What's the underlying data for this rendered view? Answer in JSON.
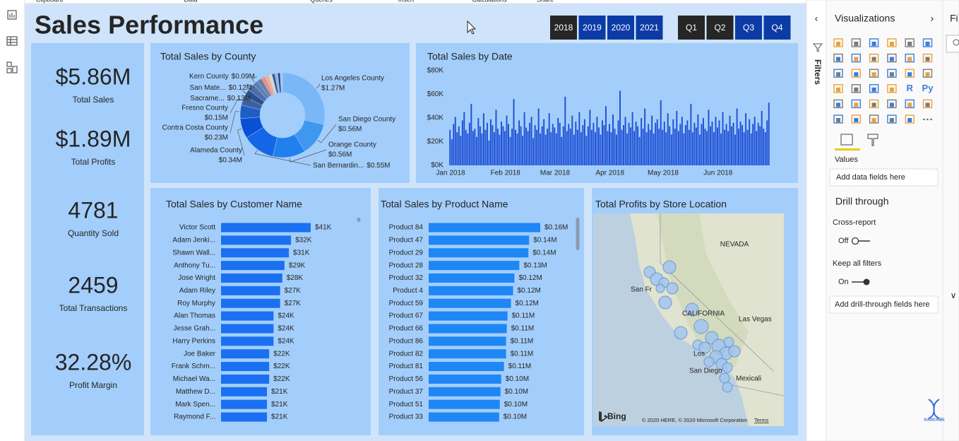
{
  "ribbon": [
    "Clipboard",
    "Data",
    "Queries",
    "Insert",
    "Calculations",
    "Share"
  ],
  "title": "Sales Performance",
  "year_slicer": [
    "2018",
    "2019",
    "2020",
    "2021"
  ],
  "quarter_slicer": [
    "Q1",
    "Q2",
    "Q3",
    "Q4"
  ],
  "kpis": [
    {
      "value": "$5.86M",
      "label": "Total Sales"
    },
    {
      "value": "$1.89M",
      "label": "Total Profits"
    },
    {
      "value": "4781",
      "label": "Quantity Sold"
    },
    {
      "value": "2459",
      "label": "Total Transactions"
    },
    {
      "value": "32.28%",
      "label": "Profit Margin"
    }
  ],
  "county_chart": {
    "type": "pie",
    "title": "Total Sales by County",
    "categories": [
      "Los Angeles County",
      "San Diego County",
      "Orange County",
      "San Bernardin...",
      "Alameda County",
      "Contra Costa County",
      "Fresno County",
      "Sacrame...",
      "San Mate...",
      "Kern County",
      null,
      null,
      null,
      null,
      null,
      null,
      null,
      null
    ],
    "values": [
      1.27,
      0.56,
      0.56,
      0.55,
      0.34,
      0.23,
      0.15,
      0.13,
      0.12,
      0.09,
      0.08,
      0.07,
      0.06,
      0.06,
      0.05,
      0.05,
      0.04,
      0.04
    ],
    "value_labels": [
      "$1.27M",
      "$0.56M",
      "$0.56M",
      "$0.55M",
      "$0.34M",
      "$0.23M",
      "$0.15M",
      "$0.13M",
      "$0.12M",
      "$0.09M",
      null,
      null,
      null,
      null,
      null,
      null,
      null,
      null
    ],
    "colors": [
      "#79b7f6",
      "#3f97f0",
      "#2280ee",
      "#1466e6",
      "#0a4fd4",
      "#1e5cc6",
      "#3f5f9c",
      "#2a4f8e",
      "#4d6ea8",
      "#5c7fb8",
      "#6b7fa3",
      "#f08e8e",
      "#f3b089",
      "#d9d9d9",
      "#3c5a8a",
      "#8fb6e8",
      "#2d3e6b",
      "#a4c8f0"
    ]
  },
  "date_chart": {
    "type": "bar",
    "title": "Total Sales by Date",
    "color": "#1c4ed4",
    "values": [
      30,
      22,
      35,
      41,
      28,
      33,
      25,
      38,
      45,
      30,
      27,
      36,
      52,
      29,
      31,
      24,
      40,
      33,
      27,
      44,
      30,
      36,
      21,
      39,
      34,
      28,
      47,
      31,
      26,
      37,
      33,
      29,
      42,
      35,
      24,
      31,
      56,
      30,
      27,
      38,
      33,
      25,
      45,
      32,
      29,
      36,
      41,
      23,
      34,
      30,
      48,
      27,
      33,
      39,
      26,
      31,
      44,
      28,
      35,
      32,
      27,
      40,
      36,
      24,
      33,
      58,
      29,
      35,
      31,
      42,
      26,
      37,
      30,
      45,
      28,
      34,
      39,
      25,
      33,
      47,
      30,
      36,
      28,
      41,
      32,
      26,
      38,
      34,
      50,
      29,
      35,
      28,
      43,
      31,
      26,
      38,
      63,
      30,
      34,
      41,
      27,
      36,
      32,
      45,
      29,
      37,
      33,
      24,
      40,
      31,
      48,
      28,
      35,
      30,
      42,
      27,
      36,
      39,
      31,
      55,
      30,
      37,
      28,
      44,
      33,
      26,
      39,
      31,
      46,
      29,
      35,
      41,
      27,
      34,
      38,
      30,
      52,
      28,
      36,
      32,
      43,
      26,
      35,
      40,
      31,
      29,
      47,
      33,
      37,
      28,
      41,
      32,
      38,
      27,
      45,
      30,
      35,
      29,
      42,
      33,
      36,
      26,
      48,
      31,
      37,
      34,
      28,
      44,
      30,
      39,
      27,
      35,
      41,
      29,
      36,
      33,
      46,
      31,
      28,
      38,
      53
    ],
    "xlim": [
      0,
      181
    ],
    "xticks": [
      {
        "value": 0,
        "label": "Jan 2018"
      },
      {
        "value": 31,
        "label": "Feb 2018"
      },
      {
        "value": 59,
        "label": "Mar 2018"
      },
      {
        "value": 90,
        "label": "Apr 2018"
      },
      {
        "value": 120,
        "label": "May 2018"
      },
      {
        "value": 151,
        "label": "Jun 2018"
      }
    ],
    "ylim": [
      0,
      80
    ],
    "yticks": [
      {
        "value": 0,
        "label": "$0K"
      },
      {
        "value": 20,
        "label": "$20K"
      },
      {
        "value": 40,
        "label": "$40K"
      },
      {
        "value": 60,
        "label": "$60K"
      },
      {
        "value": 80,
        "label": "$80K"
      }
    ]
  },
  "customer_chart": {
    "type": "bar",
    "orientation": "horizontal",
    "title": "Total Sales by Customer Name",
    "color": "#1a70f0",
    "categories": [
      "Victor Scott",
      "Adam Jenki...",
      "Shawn Wall...",
      "Anthony Tu...",
      "Jose Wright",
      "Adam Riley",
      "Roy Murphy",
      "Alan Thomas",
      "Jesse Grah...",
      "Harry Perkins",
      "Joe Baker",
      "Frank Schm...",
      "Michael Wa...",
      "Matthew D...",
      "Mark Spen...",
      "Raymond F..."
    ],
    "values": [
      41,
      32,
      31,
      29,
      28,
      27,
      27,
      24,
      24,
      24,
      22,
      22,
      22,
      21,
      21,
      21
    ],
    "value_labels": [
      "$41K",
      "$32K",
      "$31K",
      "$29K",
      "$28K",
      "$27K",
      "$27K",
      "$24K",
      "$24K",
      "$24K",
      "$22K",
      "$22K",
      "$22K",
      "$21K",
      "$21K",
      "$21K"
    ]
  },
  "product_chart": {
    "type": "bar",
    "orientation": "horizontal",
    "title": "Total Sales by Product Name",
    "color": "#1f86f5",
    "categories": [
      "Product 84",
      "Product 47",
      "Product 29",
      "Product 28",
      "Product 32",
      "Product 4",
      "Product 59",
      "Product 67",
      "Product 66",
      "Product 86",
      "Product 82",
      "Product 81",
      "Product 56",
      "Product 37",
      "Product 51",
      "Product 33"
    ],
    "values": [
      0.16,
      0.144,
      0.143,
      0.13,
      0.123,
      0.121,
      0.118,
      0.113,
      0.112,
      0.111,
      0.111,
      0.108,
      0.104,
      0.103,
      0.102,
      0.101
    ],
    "value_labels": [
      "$0.16M",
      "$0.14M",
      "$0.14M",
      "$0.13M",
      "$0.12M",
      "$0.12M",
      "$0.12M",
      "$0.11M",
      "$0.11M",
      "$0.11M",
      "$0.11M",
      "$0.11M",
      "$0.10M",
      "$0.10M",
      "$0.10M",
      "$0.10M"
    ]
  },
  "map": {
    "title": "Total Profits by Store Location",
    "labels": [
      "NEVADA",
      "San Fr",
      "CALIFORNIA",
      "Las Vegas",
      "Los",
      "San Diego",
      "Mexicali"
    ],
    "logo": "Bing",
    "attribution": "© 2020 HERE, © 2020 Microsoft Corporation",
    "terms": "Terms"
  },
  "filters_pane": {
    "title": "Filters"
  },
  "visualizations_pane": {
    "title": "Visualizations",
    "icon_labels": [
      "R",
      "Py"
    ],
    "values_label": "Values",
    "values_placeholder": "Add data fields here",
    "drill_through": "Drill through",
    "cross_report": "Cross-report",
    "cross_report_state": "Off",
    "keep_filters": "Keep all filters",
    "keep_filters_state": "On",
    "drill_placeholder": "Add drill-through fields here"
  },
  "fields_pane": {
    "title": "Fi"
  },
  "watermark": "SUBSCRIBE"
}
